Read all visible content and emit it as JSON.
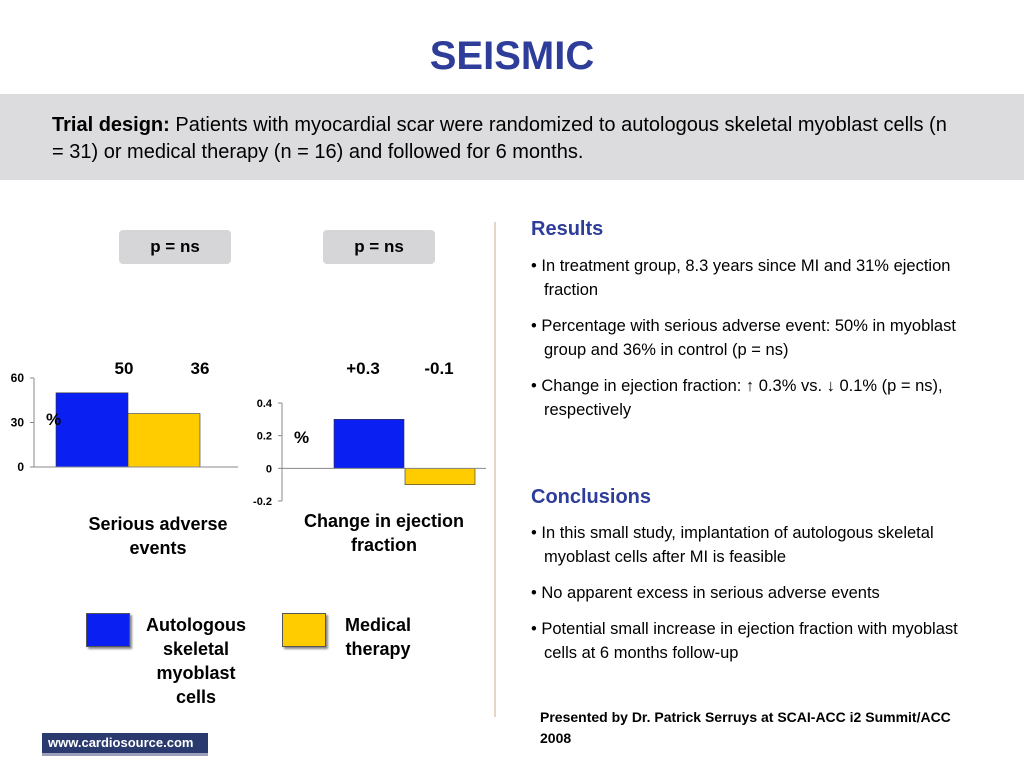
{
  "slide": {
    "title": "SEISMIC",
    "trial_design_label": "Trial design:",
    "trial_design_text": " Patients with myocardial scar were randomized to autologous skeletal myoblast cells (n = 31) or medical therapy (n = 16) and followed for 6 months."
  },
  "chart_data": [
    {
      "type": "bar",
      "title": "Serious adverse events",
      "p_value": "p = ns",
      "unit_label": "%",
      "categories": [
        "Autologous skeletal myoblast cells",
        "Medical therapy"
      ],
      "values": [
        50,
        36
      ],
      "data_labels": [
        "50",
        "36"
      ],
      "ylim": [
        0,
        60
      ],
      "yticks": [
        0,
        30,
        60
      ],
      "ytick_labels": [
        "0",
        "30",
        "60"
      ],
      "colors": [
        "#0a1ff2",
        "#ffcc00"
      ]
    },
    {
      "type": "bar",
      "title": "Change in ejection fraction",
      "p_value": "p = ns",
      "unit_label": "%",
      "categories": [
        "Autologous skeletal myoblast cells",
        "Medical therapy"
      ],
      "values": [
        0.3,
        -0.1
      ],
      "data_labels": [
        "+0.3",
        "-0.1"
      ],
      "ylim": [
        -0.2,
        0.4
      ],
      "yticks": [
        -0.2,
        0,
        0.2,
        0.4
      ],
      "ytick_labels": [
        "-0.2",
        "0",
        "0.2",
        "0.4"
      ],
      "colors": [
        "#0a1ff2",
        "#ffcc00"
      ]
    }
  ],
  "legend": [
    {
      "label": "Autologous skeletal myoblast cells",
      "color": "#0a1ff2"
    },
    {
      "label": "Medical therapy",
      "color": "#ffcc00"
    }
  ],
  "results": {
    "heading": "Results",
    "items": [
      "In treatment group, 8.3 years since MI and 31% ejection fraction",
      "Percentage with serious adverse event: 50% in myoblast group and 36% in control (p = ns)",
      "Change in ejection fraction: ↑ 0.3% vs. ↓ 0.1% (p = ns), respectively"
    ]
  },
  "conclusions": {
    "heading": "Conclusions",
    "items": [
      "In this small study, implantation of autologous skeletal myoblast cells after MI is feasible",
      "No apparent excess in serious adverse events",
      "Potential small increase in ejection fraction with myoblast cells at 6 months follow-up"
    ]
  },
  "credit": "Presented by Dr. Patrick Serruys at SCAI-ACC i2 Summit/ACC 2008",
  "logo_text": "www.cardiosource.com"
}
